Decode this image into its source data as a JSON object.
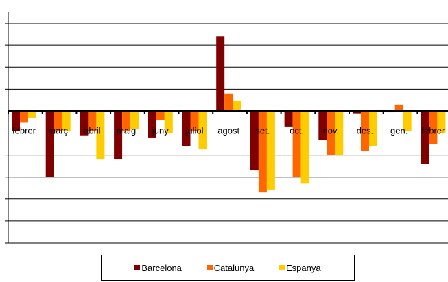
{
  "chart_data": {
    "type": "bar",
    "categories": [
      "febrer",
      "març",
      "abril",
      "maig",
      "juny",
      "juliol",
      "agost",
      "set.",
      "oct.",
      "nov.",
      "des.",
      "gen.",
      "febrer"
    ],
    "series": [
      {
        "name": "Barcelona",
        "color": "#800000",
        "values": [
          -0.9,
          -3.0,
          -1.1,
          -2.2,
          -1.2,
          -1.6,
          3.4,
          -2.7,
          -0.7,
          -1.3,
          -0.1,
          -0.05,
          -2.4
        ]
      },
      {
        "name": "Catalunya",
        "color": "#ff6600",
        "values": [
          -0.5,
          -0.9,
          -0.9,
          -0.9,
          -0.4,
          -0.9,
          0.8,
          -3.7,
          -3.0,
          -2.0,
          -1.8,
          0.3,
          -1.5
        ]
      },
      {
        "name": "Espanya",
        "color": "#ffcc00",
        "values": [
          -0.3,
          -0.9,
          -2.2,
          -0.8,
          -1.0,
          -1.7,
          0.45,
          -3.6,
          -3.3,
          -2.0,
          -1.6,
          -0.9,
          -1.0
        ]
      }
    ],
    "ylim": [
      -6,
      4.5
    ],
    "yticks": [
      -6,
      -5,
      -4,
      -3,
      -2,
      -1,
      0,
      1,
      2,
      3,
      4
    ],
    "grid": true,
    "legend_position": "bottom"
  }
}
